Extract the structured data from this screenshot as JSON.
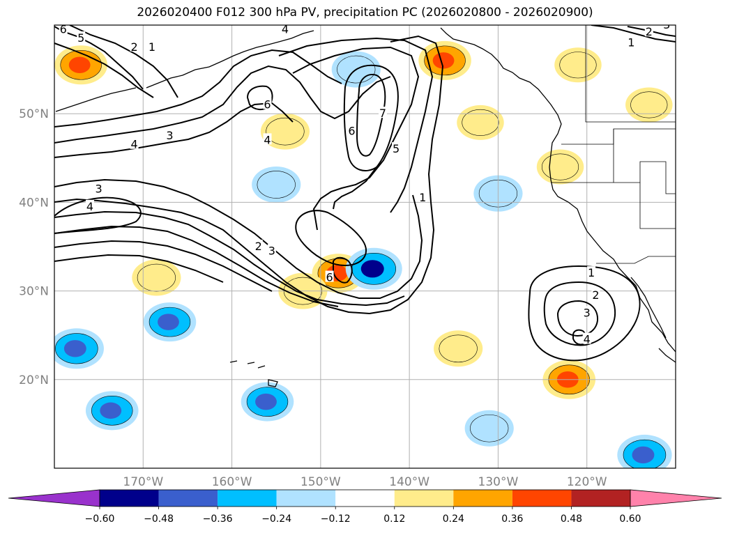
{
  "title": "2026020400 F012 300 hPa PV, precipitation PC (2026020800 - 2026020900)",
  "chart_data": {
    "type": "contour-map",
    "title": "2026020400 F012 300 hPa PV, precipitation PC (2026020800 - 2026020900)",
    "lon_range": [
      -180,
      -110
    ],
    "lat_range": [
      10,
      60
    ],
    "lat_ticks": [
      {
        "value": 20,
        "label": "20°N"
      },
      {
        "value": 30,
        "label": "30°N"
      },
      {
        "value": 40,
        "label": "40°N"
      },
      {
        "value": 50,
        "label": "50°N"
      }
    ],
    "lon_ticks": [
      {
        "value": -170,
        "label": "170°W"
      },
      {
        "value": -160,
        "label": "160°W"
      },
      {
        "value": -150,
        "label": "150°W"
      },
      {
        "value": -140,
        "label": "140°W"
      },
      {
        "value": -130,
        "label": "130°W"
      },
      {
        "value": -120,
        "label": "120°W"
      }
    ],
    "colorbar": {
      "boundaries": [
        -0.6,
        -0.48,
        -0.36,
        -0.24,
        -0.12,
        0.12,
        0.24,
        0.36,
        0.48,
        0.6
      ],
      "tick_labels": [
        "−0.60",
        "−0.48",
        "−0.36",
        "−0.24",
        "−0.12",
        "0.12",
        "0.24",
        "0.36",
        "0.48",
        "0.60"
      ],
      "colors": [
        "#9932cc",
        "#00008b",
        "#3a5fcd",
        "#00bfff",
        "#b0e2ff",
        "#ffffff",
        "#ffec8b",
        "#ffa500",
        "#ff4500",
        "#b22222",
        "#ff82ab"
      ],
      "extend": "both"
    },
    "pv_contour_labels": [
      {
        "text": "6",
        "lon": -179,
        "lat": 59.5
      },
      {
        "text": "5",
        "lon": -177,
        "lat": 58.5
      },
      {
        "text": "2",
        "lon": -171,
        "lat": 57.5
      },
      {
        "text": "1",
        "lon": -169,
        "lat": 57.5
      },
      {
        "text": "4",
        "lon": -154,
        "lat": 59.5
      },
      {
        "text": "6",
        "lon": -156,
        "lat": 51
      },
      {
        "text": "3",
        "lon": -167,
        "lat": 47.5
      },
      {
        "text": "4",
        "lon": -171,
        "lat": 46.5
      },
      {
        "text": "4",
        "lon": -156,
        "lat": 47
      },
      {
        "text": "6",
        "lon": -146.5,
        "lat": 48
      },
      {
        "text": "7",
        "lon": -143,
        "lat": 50
      },
      {
        "text": "5",
        "lon": -141.5,
        "lat": 46
      },
      {
        "text": "3",
        "lon": -175,
        "lat": 41.5
      },
      {
        "text": "4",
        "lon": -176,
        "lat": 39.5
      },
      {
        "text": "1",
        "lon": -138.5,
        "lat": 40.5
      },
      {
        "text": "2",
        "lon": -157,
        "lat": 35
      },
      {
        "text": "3",
        "lon": -155.5,
        "lat": 34.5
      },
      {
        "text": "6",
        "lon": -149,
        "lat": 31.5
      },
      {
        "text": "1",
        "lon": -119.5,
        "lat": 32
      },
      {
        "text": "2",
        "lon": -119,
        "lat": 29.5
      },
      {
        "text": "3",
        "lon": -120,
        "lat": 27.5
      },
      {
        "text": "4",
        "lon": -120,
        "lat": 24.5
      },
      {
        "text": "2",
        "lon": -113,
        "lat": 59.2
      },
      {
        "text": "3",
        "lon": -111,
        "lat": 60
      },
      {
        "text": "1",
        "lon": -115,
        "lat": 58
      }
    ],
    "precip_patches": [
      {
        "lon": -177,
        "lat": 55.5,
        "value": 0.4
      },
      {
        "lon": -154,
        "lat": 48,
        "value": 0.3
      },
      {
        "lon": -136,
        "lat": 56,
        "value": 0.4
      },
      {
        "lon": -146,
        "lat": 55,
        "value": -0.3
      },
      {
        "lon": -155,
        "lat": 42,
        "value": -0.3
      },
      {
        "lon": -148,
        "lat": 32,
        "value": 0.4
      },
      {
        "lon": -152,
        "lat": 30,
        "value": 0.3
      },
      {
        "lon": -144,
        "lat": 32.5,
        "value": -0.5
      },
      {
        "lon": -168.5,
        "lat": 31.5,
        "value": 0.3
      },
      {
        "lon": -167,
        "lat": 26.5,
        "value": -0.4
      },
      {
        "lon": -177.5,
        "lat": 23.5,
        "value": -0.45
      },
      {
        "lon": -173.5,
        "lat": 16.5,
        "value": -0.4
      },
      {
        "lon": -156,
        "lat": 17.5,
        "value": -0.4
      },
      {
        "lon": -132,
        "lat": 49,
        "value": 0.25
      },
      {
        "lon": -121,
        "lat": 55.5,
        "value": 0.25
      },
      {
        "lon": -113,
        "lat": 51,
        "value": 0.25
      },
      {
        "lon": -123,
        "lat": 44,
        "value": 0.25
      },
      {
        "lon": -130,
        "lat": 41,
        "value": -0.3
      },
      {
        "lon": -122,
        "lat": 20,
        "value": 0.4
      },
      {
        "lon": -113.5,
        "lat": 11.5,
        "value": -0.45
      },
      {
        "lon": -134.5,
        "lat": 23.5,
        "value": 0.3
      },
      {
        "lon": -131,
        "lat": 14.5,
        "value": -0.3
      }
    ]
  }
}
